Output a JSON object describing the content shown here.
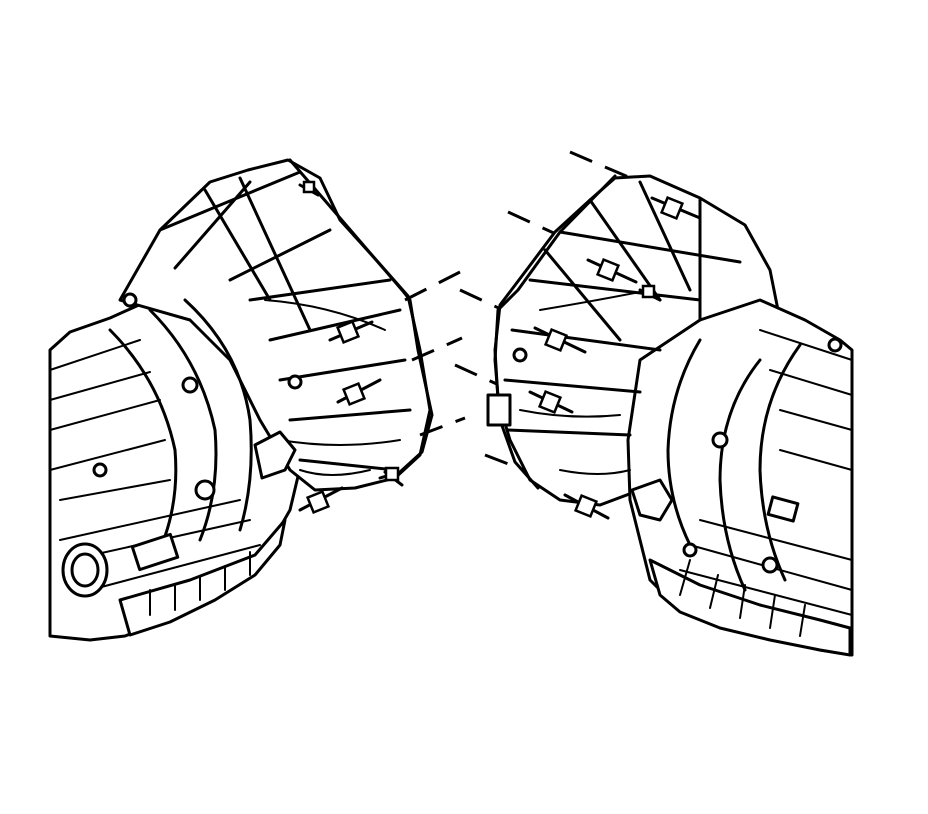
{
  "figure": {
    "description_visible": false,
    "colors": {
      "ink": "#000000",
      "background": "#ffffff"
    },
    "components": [
      "left-transmission-assembly",
      "right-transmission-assembly",
      "bellhousing-bolts",
      "alignment-dashed-lines"
    ],
    "bolt_count_left": 5,
    "bolt_count_right": 6
  }
}
